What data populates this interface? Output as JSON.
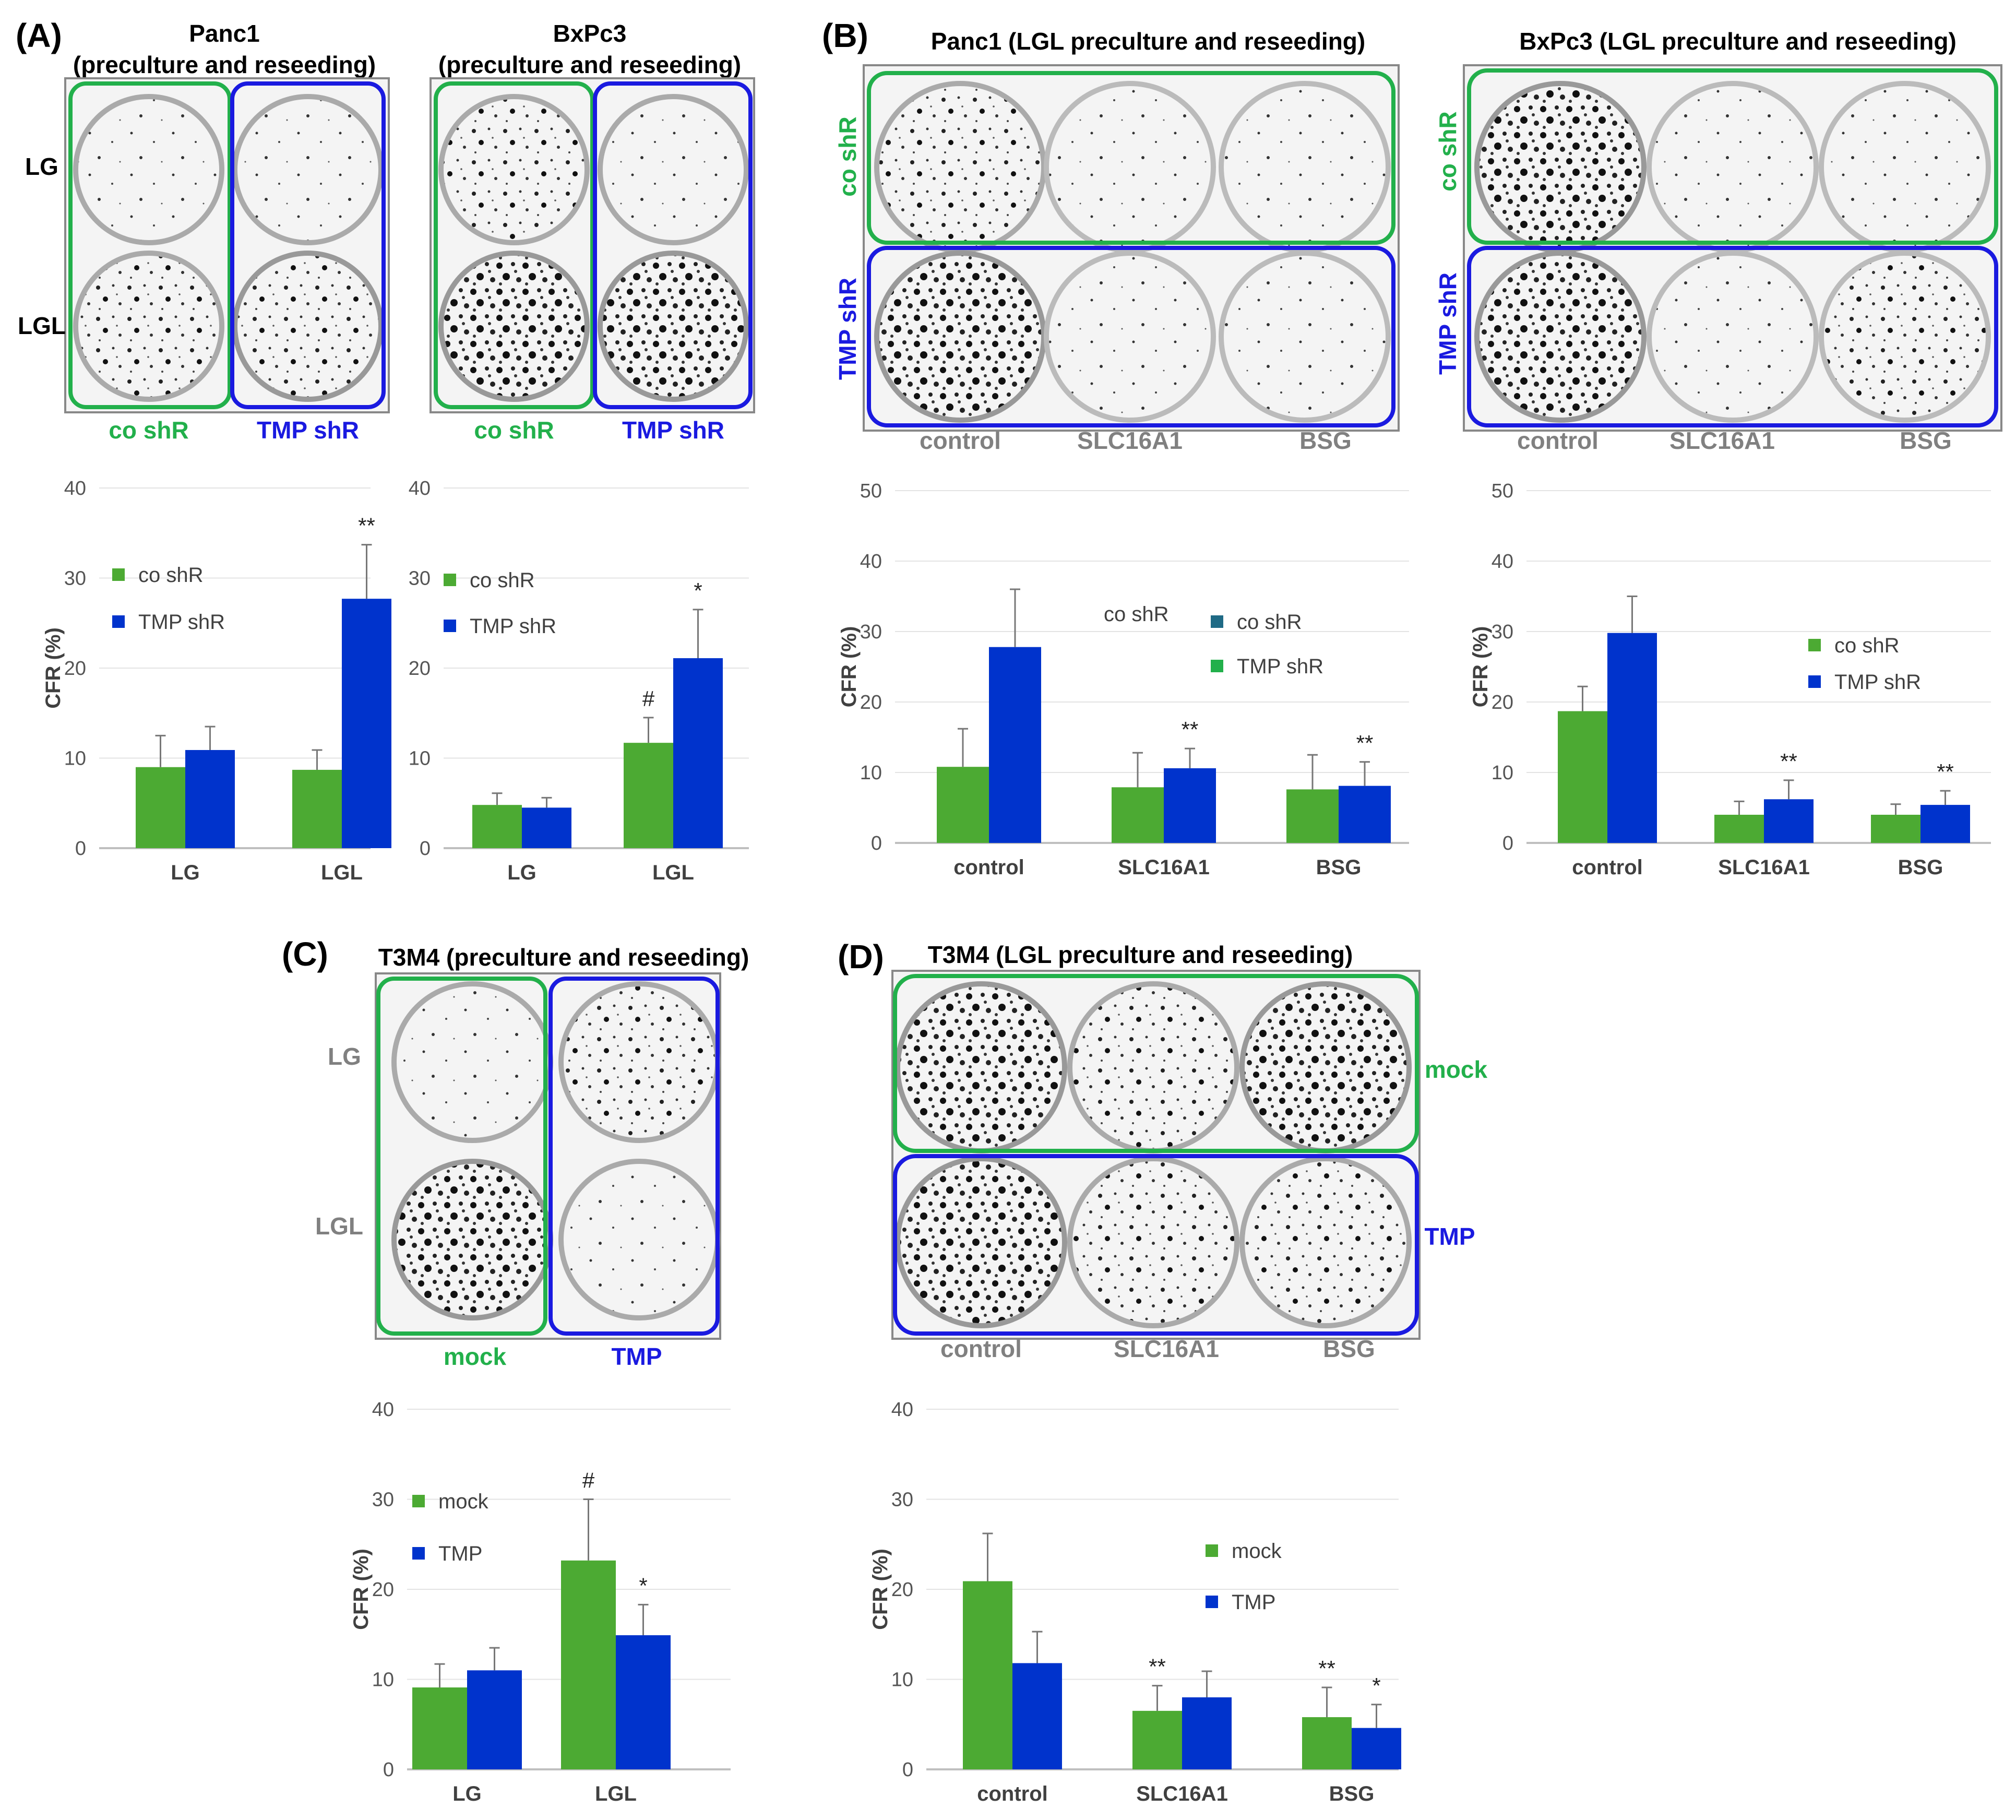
{
  "colors": {
    "green": "#4caa33",
    "blue": "#0033cc",
    "frame_green": "#22b04b",
    "frame_blue": "#1a1ae0",
    "gray_text": "#808080",
    "teal_legend": "#1f6a85",
    "bright_green_legend": "#22b04b"
  },
  "panels": {
    "A": {
      "letter": "(A)",
      "panc1_title_1": "Panc1",
      "panc1_title_2": "(preculture and reseeding)",
      "bxpc3_title_1": "BxPc3",
      "bxpc3_title_2": "(preculture and reseeding)",
      "row_lg": "LG",
      "row_lgl": "LGL",
      "col_co": "co shR",
      "col_tmp": "TMP shR"
    },
    "B": {
      "letter": "(B)",
      "panc1_title": "Panc1 (LGL preculture and reseeding)",
      "bxpc3_title": "BxPc3 (LGL preculture and reseeding)",
      "row_co": "co shR",
      "row_tmp": "TMP shR",
      "col_control": "control",
      "col_slc": "SLC16A1",
      "col_bsg": "BSG"
    },
    "C": {
      "letter": "(C)",
      "title": "T3M4 (preculture and reseeding)",
      "row_lg": "LG",
      "row_lgl": "LGL",
      "col_mock": "mock",
      "col_tmp": "TMP"
    },
    "D": {
      "letter": "(D)",
      "title": "T3M4 (LGL preculture and reseeding)",
      "row_mock": "mock",
      "row_tmp": "TMP",
      "col_control": "control",
      "col_slc": "SLC16A1",
      "col_bsg": "BSG"
    }
  },
  "chart_data": [
    {
      "id": "A1",
      "type": "bar",
      "ylabel": "CFR (%)",
      "ylim": [
        0,
        40
      ],
      "yticks": [
        0,
        10,
        20,
        30,
        40
      ],
      "categories": [
        "LG",
        "LGL"
      ],
      "legend": [
        "co shR",
        "TMP shR"
      ],
      "series": [
        {
          "name": "co shR",
          "values": [
            9.0,
            8.7
          ],
          "errors": [
            3.5,
            2.2
          ],
          "marks": [
            "",
            ""
          ]
        },
        {
          "name": "TMP shR",
          "values": [
            10.9,
            27.7
          ],
          "errors": [
            2.6,
            6.0
          ],
          "marks": [
            "",
            "**"
          ]
        }
      ]
    },
    {
      "id": "A2",
      "type": "bar",
      "ylabel": "",
      "ylim": [
        0,
        40
      ],
      "yticks": [
        0,
        10,
        20,
        30,
        40
      ],
      "categories": [
        "LG",
        "LGL"
      ],
      "legend": [
        "co shR",
        "TMP shR"
      ],
      "series": [
        {
          "name": "co shR",
          "values": [
            4.8,
            11.7
          ],
          "errors": [
            1.3,
            2.8
          ],
          "marks": [
            "",
            "#"
          ]
        },
        {
          "name": "TMP shR",
          "values": [
            4.5,
            21.1
          ],
          "errors": [
            1.1,
            5.4
          ],
          "marks": [
            "",
            "*"
          ]
        }
      ]
    },
    {
      "id": "B1",
      "type": "bar",
      "ylabel": "CFR (%)",
      "ylim": [
        0,
        50
      ],
      "yticks": [
        0,
        10,
        20,
        30,
        40,
        50
      ],
      "categories": [
        "control",
        "SLC16A1",
        "BSG"
      ],
      "legend": [
        "co shR",
        "TMP shR"
      ],
      "annotation": "co shR",
      "series": [
        {
          "name": "co shR",
          "values": [
            10.8,
            7.9,
            7.6
          ],
          "errors": [
            5.4,
            4.9,
            4.9
          ],
          "marks": [
            "",
            "",
            ""
          ]
        },
        {
          "name": "TMP shR",
          "values": [
            27.8,
            10.6,
            8.1
          ],
          "errors": [
            8.2,
            2.8,
            3.4
          ],
          "marks": [
            "",
            "**",
            "**"
          ]
        }
      ]
    },
    {
      "id": "B2",
      "type": "bar",
      "ylabel": "CFR (%)",
      "ylim": [
        0,
        50
      ],
      "yticks": [
        0,
        10,
        20,
        30,
        40,
        50
      ],
      "categories": [
        "control",
        "SLC16A1",
        "BSG"
      ],
      "legend": [
        "co shR",
        "TMP shR"
      ],
      "series": [
        {
          "name": "co shR",
          "values": [
            18.7,
            4.0,
            4.0
          ],
          "errors": [
            3.5,
            1.9,
            1.5
          ],
          "marks": [
            "",
            "",
            ""
          ]
        },
        {
          "name": "TMP shR",
          "values": [
            29.8,
            6.2,
            5.4
          ],
          "errors": [
            5.2,
            2.7,
            2.0
          ],
          "marks": [
            "",
            "**",
            "**"
          ]
        }
      ]
    },
    {
      "id": "C",
      "type": "bar",
      "ylabel": "CFR (%)",
      "ylim": [
        0,
        40
      ],
      "yticks": [
        0,
        10,
        20,
        30,
        40
      ],
      "categories": [
        "LG",
        "LGL"
      ],
      "legend": [
        "mock",
        "TMP"
      ],
      "series": [
        {
          "name": "mock",
          "values": [
            9.1,
            23.2
          ],
          "errors": [
            2.6,
            6.8
          ],
          "marks": [
            "",
            "#"
          ]
        },
        {
          "name": "TMP",
          "values": [
            11.0,
            14.9
          ],
          "errors": [
            2.5,
            3.4
          ],
          "marks": [
            "",
            "*"
          ]
        }
      ]
    },
    {
      "id": "D",
      "type": "bar",
      "ylabel": "CFR (%)",
      "ylim": [
        0,
        40
      ],
      "yticks": [
        0,
        10,
        20,
        30,
        40
      ],
      "categories": [
        "control",
        "SLC16A1",
        "BSG"
      ],
      "legend": [
        "mock",
        "TMP"
      ],
      "series": [
        {
          "name": "mock",
          "values": [
            20.9,
            6.5,
            5.8
          ],
          "errors": [
            5.3,
            2.8,
            3.3
          ],
          "marks": [
            "",
            "**",
            "**"
          ]
        },
        {
          "name": "TMP",
          "values": [
            11.8,
            8.0,
            4.6
          ],
          "errors": [
            3.5,
            2.9,
            2.6
          ],
          "marks": [
            "",
            "",
            "*"
          ]
        }
      ]
    }
  ]
}
